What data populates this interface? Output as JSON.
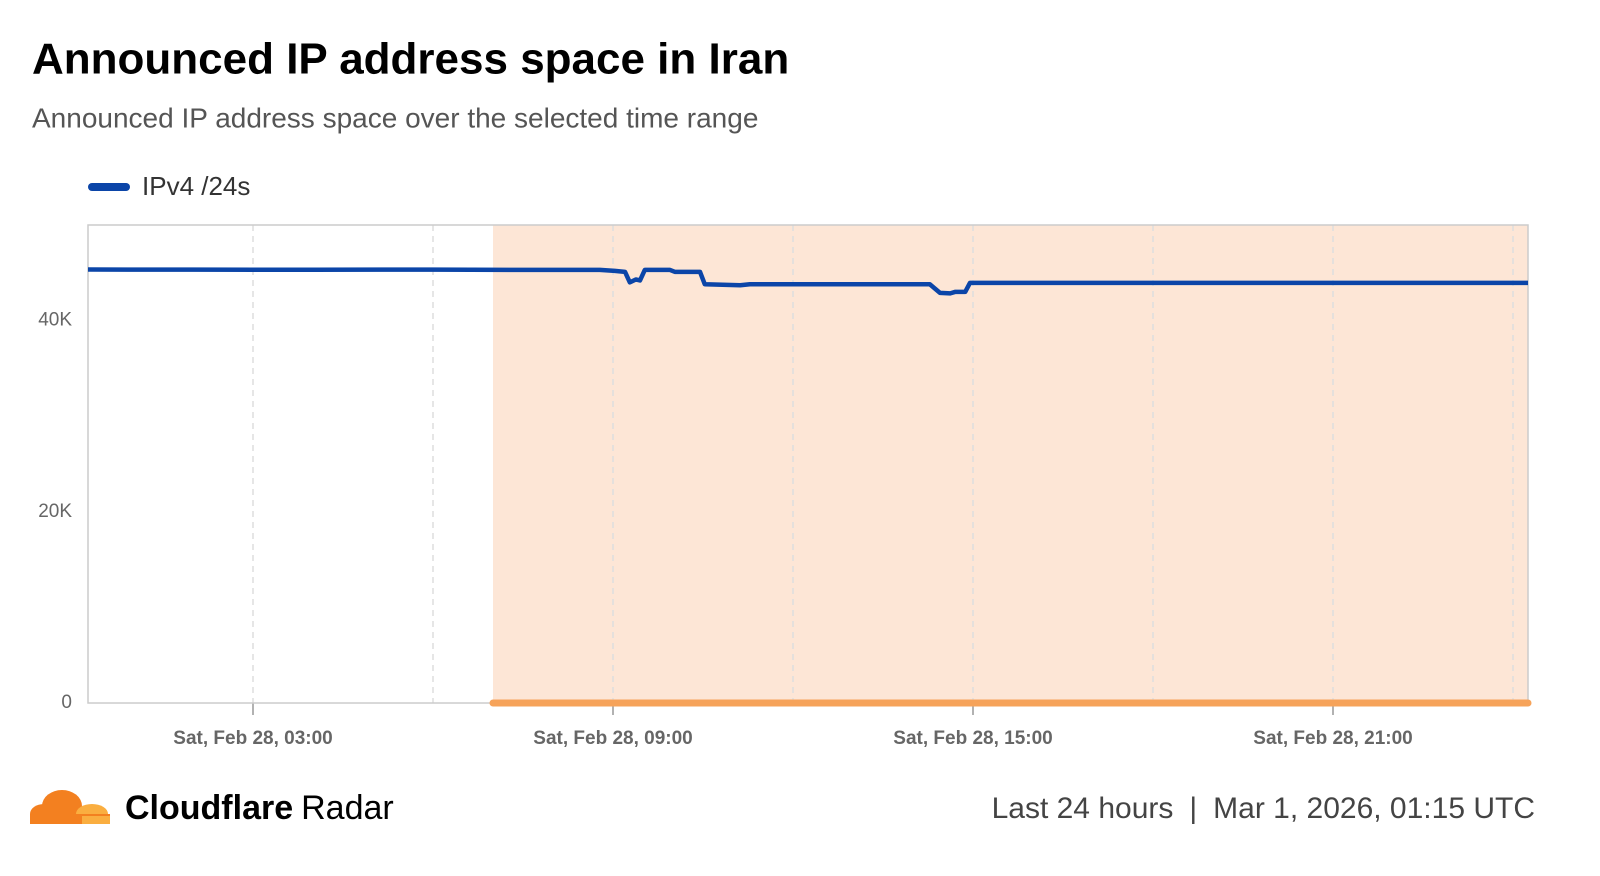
{
  "chart_data": {
    "type": "line",
    "title": "Announced IP address space in Iran",
    "subtitle": "Announced IP address space over the selected time range",
    "x": [
      0.25,
      2,
      4,
      6,
      8,
      8.78,
      9.03,
      9.2,
      9.28,
      9.38,
      9.45,
      9.53,
      9.95,
      10.03,
      10.45,
      10.53,
      11.12,
      11.28,
      12,
      13,
      14.28,
      14.45,
      14.62,
      14.7,
      14.87,
      14.95,
      16,
      18,
      20,
      22,
      24.25
    ],
    "series": [
      {
        "name": "IPv4 /24s",
        "color": "#0b45a8",
        "values": [
          45340,
          45330,
          45320,
          45330,
          45300,
          45300,
          45200,
          45100,
          44000,
          44300,
          44200,
          45300,
          45300,
          45100,
          45100,
          43800,
          43700,
          43800,
          43800,
          43800,
          43800,
          42900,
          42850,
          43000,
          43000,
          43950,
          43950,
          43950,
          43940,
          43950,
          43950
        ]
      }
    ],
    "xlim": [
      0.25,
      24.25
    ],
    "xticks": [
      {
        "value": 3,
        "label": "Sat, Feb 28, 03:00"
      },
      {
        "value": 9,
        "label": "Sat, Feb 28, 09:00"
      },
      {
        "value": 15,
        "label": "Sat, Feb 28, 15:00"
      },
      {
        "value": 21,
        "label": "Sat, Feb 28, 21:00"
      }
    ],
    "x_minor_ticks": [
      6,
      12,
      18,
      24
    ],
    "ylim": [
      0,
      50000
    ],
    "yticks": [
      0,
      {
        "value": 20000,
        "label": "20K"
      },
      {
        "value": 40000,
        "label": "40K"
      }
    ],
    "highlight": {
      "xlim": [
        7,
        24.25
      ],
      "color": "#fde6d6",
      "bar_color": "#f6a35a"
    },
    "grid": true
  },
  "footer": {
    "brand": "Cloudflare",
    "product": "Radar",
    "range": "Last 24 hours",
    "separator": "|",
    "timestamp": "Mar 1, 2026, 01:15 UTC"
  }
}
